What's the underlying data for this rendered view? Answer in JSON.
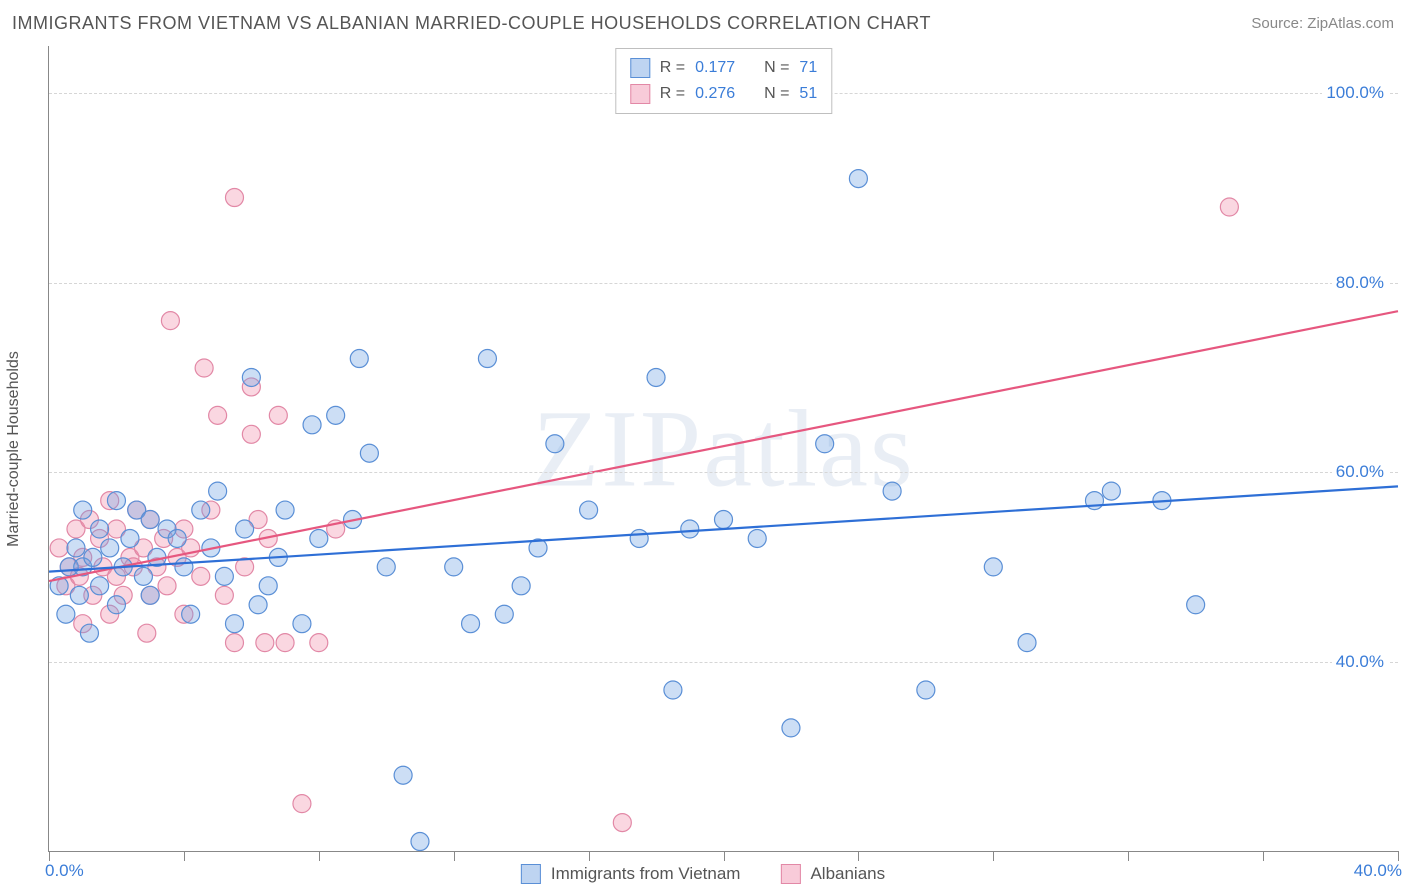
{
  "header": {
    "title": "IMMIGRANTS FROM VIETNAM VS ALBANIAN MARRIED-COUPLE HOUSEHOLDS CORRELATION CHART",
    "source_prefix": "Source: ",
    "source_name": "ZipAtlas.com"
  },
  "chart": {
    "type": "scatter",
    "watermark": "ZIPatlas",
    "background_color": "#ffffff",
    "grid_color": "#d6d6d6",
    "axis_color": "#888888",
    "tick_label_color": "#3b7dd8",
    "axis_title_color": "#555555",
    "xlim": [
      0,
      40
    ],
    "ylim": [
      20,
      105
    ],
    "x_tick_positions": [
      0,
      4,
      8,
      12,
      16,
      20,
      24,
      28,
      32,
      36,
      40
    ],
    "x_tick_labels_shown": {
      "first": "0.0%",
      "last": "40.0%"
    },
    "y_ticks": [
      40,
      60,
      80,
      100
    ],
    "y_tick_labels": [
      "40.0%",
      "60.0%",
      "80.0%",
      "100.0%"
    ],
    "yaxis_title": "Married-couple Households",
    "marker_radius": 9,
    "marker_stroke_width": 1.2,
    "marker_fill_opacity": 0.35,
    "trendline_width": 2.2,
    "title_fontsize": 18,
    "axis_label_fontsize": 16,
    "tick_fontsize": 17
  },
  "legend_top": {
    "r_label": "R  =",
    "n_label": "N  =",
    "rows": [
      {
        "color": "blue",
        "r": "0.177",
        "n": "71"
      },
      {
        "color": "pink",
        "r": "0.276",
        "n": "51"
      }
    ]
  },
  "legend_bottom": {
    "items": [
      {
        "color": "blue",
        "label": "Immigrants from Vietnam"
      },
      {
        "color": "pink",
        "label": "Albanians"
      }
    ]
  },
  "series": {
    "blue": {
      "name": "Immigrants from Vietnam",
      "marker_fill": "#6ea0e1",
      "marker_stroke": "#5a8fd6",
      "line_color": "#2e6fd6",
      "trend": {
        "x1": 0,
        "y1": 49.5,
        "x2": 40,
        "y2": 58.5
      },
      "points": [
        [
          0.3,
          48
        ],
        [
          0.5,
          45
        ],
        [
          0.6,
          50
        ],
        [
          0.8,
          52
        ],
        [
          0.9,
          47
        ],
        [
          1.0,
          56
        ],
        [
          1.0,
          50
        ],
        [
          1.2,
          43
        ],
        [
          1.3,
          51
        ],
        [
          1.5,
          54
        ],
        [
          1.5,
          48
        ],
        [
          1.8,
          52
        ],
        [
          2.0,
          57
        ],
        [
          2.0,
          46
        ],
        [
          2.2,
          50
        ],
        [
          2.4,
          53
        ],
        [
          2.6,
          56
        ],
        [
          2.8,
          49
        ],
        [
          3.0,
          47
        ],
        [
          3.0,
          55
        ],
        [
          3.2,
          51
        ],
        [
          3.5,
          54
        ],
        [
          3.8,
          53
        ],
        [
          4.0,
          50
        ],
        [
          4.2,
          45
        ],
        [
          4.5,
          56
        ],
        [
          4.8,
          52
        ],
        [
          5.0,
          58
        ],
        [
          5.2,
          49
        ],
        [
          5.5,
          44
        ],
        [
          5.8,
          54
        ],
        [
          6.0,
          70
        ],
        [
          6.2,
          46
        ],
        [
          6.5,
          48
        ],
        [
          6.8,
          51
        ],
        [
          7.0,
          56
        ],
        [
          7.5,
          44
        ],
        [
          7.8,
          65
        ],
        [
          8.0,
          53
        ],
        [
          8.5,
          66
        ],
        [
          9.0,
          55
        ],
        [
          9.2,
          72
        ],
        [
          9.5,
          62
        ],
        [
          10.0,
          50
        ],
        [
          10.5,
          28
        ],
        [
          11.0,
          21
        ],
        [
          12.0,
          50
        ],
        [
          12.5,
          44
        ],
        [
          13.0,
          72
        ],
        [
          13.5,
          45
        ],
        [
          14.0,
          48
        ],
        [
          14.5,
          52
        ],
        [
          15.0,
          63
        ],
        [
          16.0,
          56
        ],
        [
          17.5,
          53
        ],
        [
          18.0,
          70
        ],
        [
          18.5,
          37
        ],
        [
          19.0,
          54
        ],
        [
          20.0,
          55
        ],
        [
          21.0,
          53
        ],
        [
          22.0,
          33
        ],
        [
          23.0,
          63
        ],
        [
          24.0,
          91
        ],
        [
          25.0,
          58
        ],
        [
          26.0,
          37
        ],
        [
          28.0,
          50
        ],
        [
          29.0,
          42
        ],
        [
          31.0,
          57
        ],
        [
          31.5,
          58
        ],
        [
          33.0,
          57
        ],
        [
          34.0,
          46
        ]
      ]
    },
    "pink": {
      "name": "Albanians",
      "marker_fill": "#f08caa",
      "marker_stroke": "#e288a6",
      "line_color": "#e6577f",
      "trend": {
        "x1": 0,
        "y1": 48.5,
        "x2": 40,
        "y2": 77.0
      },
      "points": [
        [
          0.3,
          52
        ],
        [
          0.5,
          48
        ],
        [
          0.6,
          50
        ],
        [
          0.8,
          54
        ],
        [
          0.9,
          49
        ],
        [
          1.0,
          44
        ],
        [
          1.0,
          51
        ],
        [
          1.2,
          55
        ],
        [
          1.3,
          47
        ],
        [
          1.5,
          53
        ],
        [
          1.6,
          50
        ],
        [
          1.8,
          57
        ],
        [
          1.8,
          45
        ],
        [
          2.0,
          49
        ],
        [
          2.0,
          54
        ],
        [
          2.2,
          47
        ],
        [
          2.4,
          51
        ],
        [
          2.5,
          50
        ],
        [
          2.6,
          56
        ],
        [
          2.8,
          52
        ],
        [
          2.9,
          43
        ],
        [
          3.0,
          47
        ],
        [
          3.0,
          55
        ],
        [
          3.2,
          50
        ],
        [
          3.4,
          53
        ],
        [
          3.5,
          48
        ],
        [
          3.6,
          76
        ],
        [
          3.8,
          51
        ],
        [
          4.0,
          54
        ],
        [
          4.0,
          45
        ],
        [
          4.2,
          52
        ],
        [
          4.5,
          49
        ],
        [
          4.6,
          71
        ],
        [
          4.8,
          56
        ],
        [
          5.0,
          66
        ],
        [
          5.2,
          47
        ],
        [
          5.5,
          42
        ],
        [
          5.5,
          89
        ],
        [
          5.8,
          50
        ],
        [
          6.0,
          64
        ],
        [
          6.0,
          69
        ],
        [
          6.2,
          55
        ],
        [
          6.4,
          42
        ],
        [
          6.5,
          53
        ],
        [
          6.8,
          66
        ],
        [
          7.0,
          42
        ],
        [
          7.5,
          25
        ],
        [
          8.0,
          42
        ],
        [
          8.5,
          54
        ],
        [
          17.0,
          23
        ],
        [
          35.0,
          88
        ]
      ]
    }
  }
}
